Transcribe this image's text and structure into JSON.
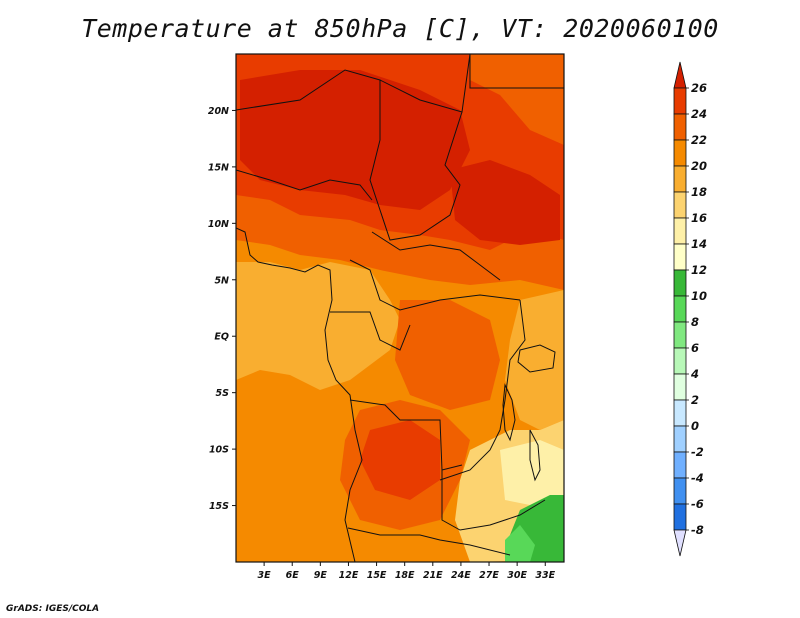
{
  "title": "Temperature at 850hPa [C], VT: 2020060100",
  "footer": "GrADS: IGES/COLA",
  "map": {
    "lon_range": [
      0,
      35
    ],
    "lat_range": [
      -20,
      25
    ],
    "lat_ticks": [
      {
        "value": 20,
        "label": "20N"
      },
      {
        "value": 15,
        "label": "15N"
      },
      {
        "value": 10,
        "label": "10N"
      },
      {
        "value": 5,
        "label": "5N"
      },
      {
        "value": 0,
        "label": "EQ"
      },
      {
        "value": -5,
        "label": "5S"
      },
      {
        "value": -10,
        "label": "10S"
      },
      {
        "value": -15,
        "label": "15S"
      }
    ],
    "lon_ticks": [
      {
        "value": 3,
        "label": "3E"
      },
      {
        "value": 6,
        "label": "6E"
      },
      {
        "value": 9,
        "label": "9E"
      },
      {
        "value": 12,
        "label": "12E"
      },
      {
        "value": 15,
        "label": "15E"
      },
      {
        "value": 18,
        "label": "18E"
      },
      {
        "value": 21,
        "label": "21E"
      },
      {
        "value": 24,
        "label": "24E"
      },
      {
        "value": 27,
        "label": "27E"
      },
      {
        "value": 30,
        "label": "30E"
      },
      {
        "value": 33,
        "label": "33E"
      }
    ]
  },
  "colorbar": {
    "levels": [
      "26",
      "24",
      "22",
      "20",
      "18",
      "16",
      "14",
      "12",
      "10",
      "8",
      "6",
      "4",
      "2",
      "0",
      "-2",
      "-4",
      "-6",
      "-8"
    ],
    "colors": [
      "#d42000",
      "#e83c00",
      "#f06000",
      "#f58a00",
      "#f9ae30",
      "#fcd370",
      "#fef0a8",
      "#ffffc8",
      "#38b838",
      "#58d858",
      "#80e880",
      "#b8f8b8",
      "#e0ffe0",
      "#c8e8ff",
      "#a0d0ff",
      "#70b0ff",
      "#4090f0",
      "#2070e0",
      "#1050c0",
      "#0a2a98",
      "#000078",
      "#e0e0ff"
    ]
  }
}
